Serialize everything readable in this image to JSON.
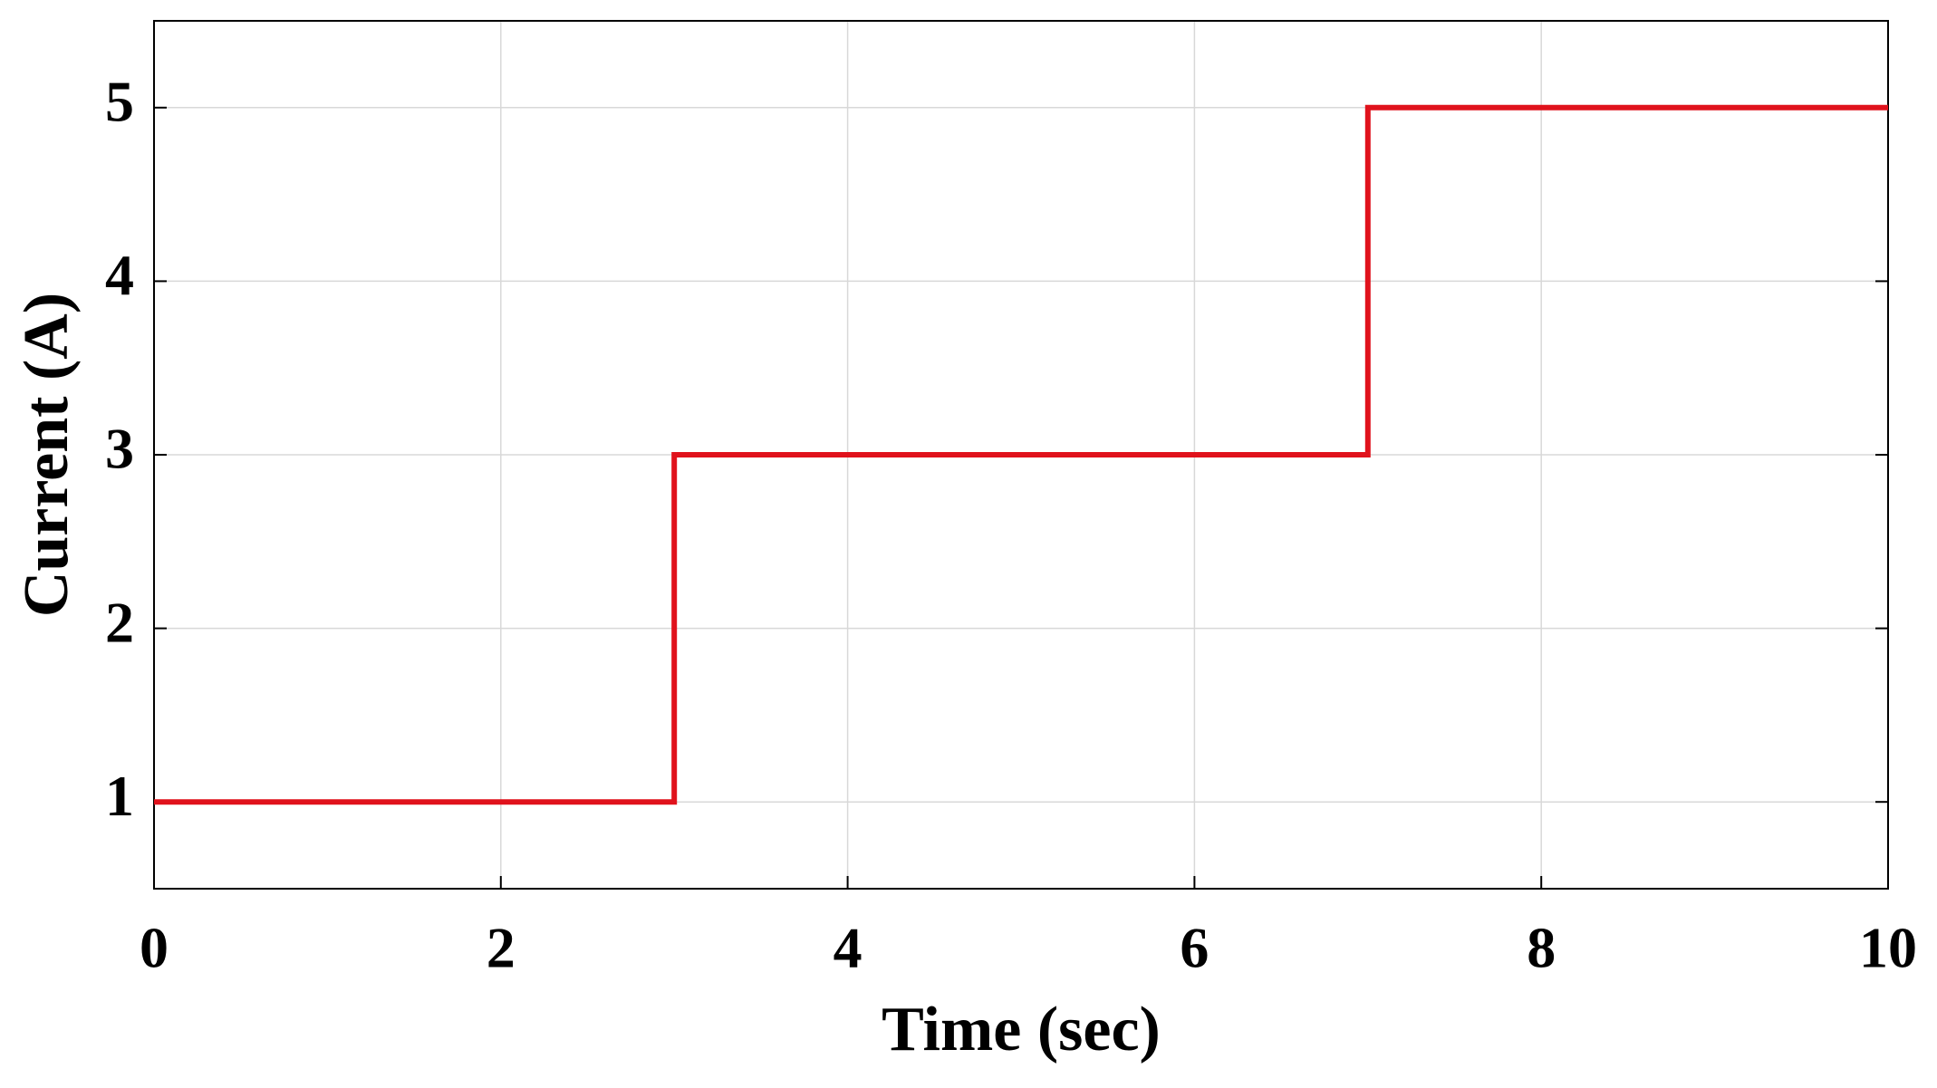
{
  "chart_data": {
    "type": "line",
    "xlabel": "Time (sec)",
    "ylabel": "Current (A)",
    "x": [
      0,
      3,
      3,
      7,
      7,
      10
    ],
    "series": [
      {
        "color": "#e0121c",
        "values": [
          1,
          1,
          3,
          3,
          5,
          5
        ]
      }
    ],
    "xlim": [
      0,
      10
    ],
    "xticks": [
      0,
      2,
      4,
      6,
      8,
      10
    ],
    "ylim": [
      0.5,
      5.5
    ],
    "yticks": [
      1,
      2,
      3,
      4,
      5
    ],
    "grid": true
  }
}
